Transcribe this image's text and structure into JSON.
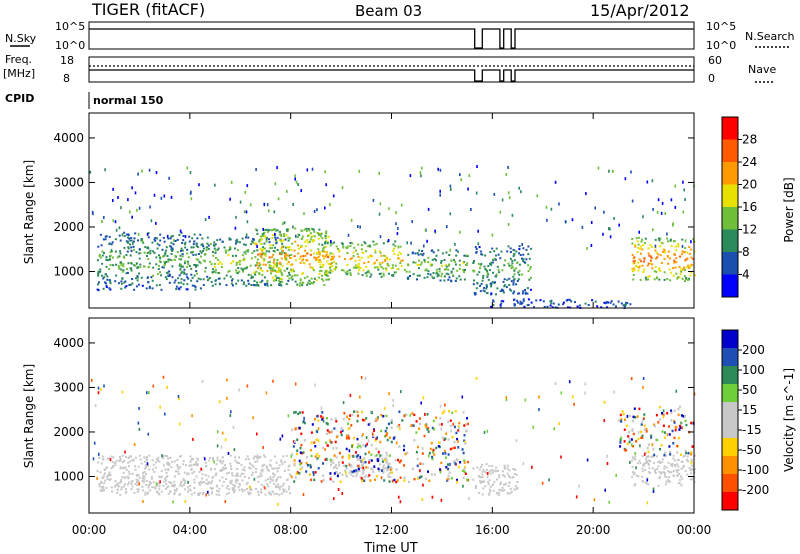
{
  "header": {
    "station": "TIGER (fitACF)",
    "beam": "Beam 03",
    "date": "15/Apr/2012"
  },
  "panel_labels": {
    "nsky": "N.Sky",
    "nsearch": "N.Search",
    "freq": "Freq.",
    "freq_unit": "[MHz]",
    "nave": "Nave",
    "cpid": "CPID",
    "cpid_value": "normal 150",
    "nsky_ticks": [
      "10^5",
      "10^0"
    ],
    "freq_ticks": [
      "18",
      "8"
    ],
    "nave_ticks": [
      "60",
      "0"
    ]
  },
  "colors": {
    "power": [
      "#0000ff",
      "#1a4fb0",
      "#2b8a5c",
      "#6fbf3a",
      "#e8e000",
      "#ff9a00",
      "#ff5a00",
      "#ff0000"
    ],
    "velocity": [
      "#0000cc",
      "#1f4fb5",
      "#2e8b57",
      "#6fcf3a",
      "#c8c8c8",
      "#c8c8c8",
      "#ffd000",
      "#ff9000",
      "#ff5000",
      "#ff0000"
    ],
    "ground_scatter": "#c8c8c8"
  },
  "chart_data": [
    {
      "type": "line",
      "name": "N.Sky / N.Search",
      "x": [
        "00:00",
        "15:20",
        "15:40",
        "16:20",
        "16:40",
        "17:00",
        "24:00"
      ],
      "y_ticks": [
        "10^5",
        "10^0"
      ],
      "gaps_utc": [
        [
          15.3,
          15.6
        ],
        [
          16.3,
          16.45
        ],
        [
          16.75,
          16.9
        ]
      ],
      "note_series": [
        "N.Sky",
        "N.Search"
      ]
    },
    {
      "type": "line",
      "name": "Freq / Nave",
      "series": [
        {
          "name": "Freq.",
          "level_mhz": 12
        },
        {
          "name": "Nave",
          "level": 30
        }
      ],
      "freq_ylim": [
        8,
        18
      ],
      "nave_ylim": [
        0,
        60
      ]
    },
    {
      "type": "heatmap",
      "title": "Power",
      "ylabel": "Slant Range [km]",
      "xlabel": "Time UT",
      "x_ticks": [
        "00:00",
        "04:00",
        "08:00",
        "12:00",
        "16:00",
        "20:00",
        "00:00"
      ],
      "xlim_hours": [
        0,
        24
      ],
      "y_ticks": [
        1000,
        2000,
        3000,
        4000
      ],
      "ylim": [
        180,
        4560
      ],
      "colorbar": {
        "label": "Power [dB]",
        "ticks": [
          4,
          8,
          12,
          16,
          20,
          24,
          28
        ],
        "range": [
          0,
          30
        ]
      },
      "scatter_regions": [
        {
          "t": [
            0.3,
            4.5
          ],
          "r": [
            600,
            1900
          ],
          "level": 10
        },
        {
          "t": [
            4.5,
            8.0
          ],
          "r": [
            700,
            1800
          ],
          "level": 13
        },
        {
          "t": [
            6.5,
            9.5
          ],
          "r": [
            700,
            2000
          ],
          "level": 19
        },
        {
          "t": [
            9.0,
            12.5
          ],
          "r": [
            900,
            1700
          ],
          "level": 17
        },
        {
          "t": [
            12.5,
            15.0
          ],
          "r": [
            800,
            1500
          ],
          "level": 12
        },
        {
          "t": [
            15.2,
            17.5
          ],
          "r": [
            500,
            1600
          ],
          "level": 10
        },
        {
          "t": [
            15.8,
            21.5
          ],
          "r": [
            200,
            400
          ],
          "level": 6
        },
        {
          "t": [
            21.5,
            24.0
          ],
          "r": [
            800,
            1800
          ],
          "level": 20
        }
      ]
    },
    {
      "type": "heatmap",
      "title": "Velocity",
      "ylabel": "Slant Range [km]",
      "xlabel": "Time UT",
      "x_ticks": [
        "00:00",
        "04:00",
        "08:00",
        "12:00",
        "16:00",
        "20:00",
        "00:00"
      ],
      "xlim_hours": [
        0,
        24
      ],
      "y_ticks": [
        1000,
        2000,
        3000,
        4000
      ],
      "ylim": [
        180,
        4560
      ],
      "colorbar": {
        "label": "Velocity [m s^-1]",
        "ticks": [
          200,
          100,
          50,
          15,
          -15,
          -50,
          -100,
          -200
        ]
      },
      "ground_scatter_regions": [
        {
          "t": [
            0.3,
            8.0
          ],
          "r": [
            600,
            1500
          ]
        },
        {
          "t": [
            9.5,
            12.0
          ],
          "r": [
            1000,
            1500
          ]
        },
        {
          "t": [
            15.2,
            17.0
          ],
          "r": [
            600,
            1300
          ]
        },
        {
          "t": [
            21.5,
            24.0
          ],
          "r": [
            800,
            1500
          ]
        }
      ],
      "ionospheric_regions": [
        {
          "t": [
            8.0,
            15.0
          ],
          "r": [
            900,
            2500
          ]
        },
        {
          "t": [
            21.0,
            24.0
          ],
          "r": [
            1500,
            2600
          ]
        }
      ]
    }
  ]
}
